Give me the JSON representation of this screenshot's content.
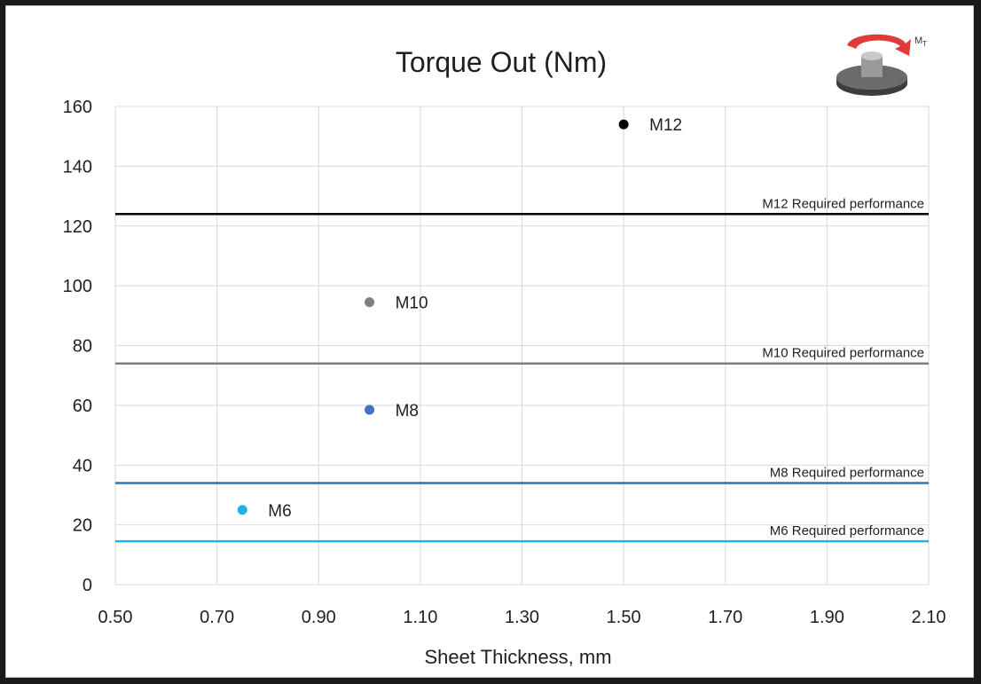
{
  "chart_data": {
    "type": "scatter",
    "title": "Torque Out (Nm)",
    "xlabel": "Sheet Thickness, mm",
    "ylabel": "",
    "xlim": [
      0.5,
      2.1
    ],
    "ylim": [
      0,
      160
    ],
    "x_ticks": [
      "0.50",
      "0.70",
      "0.90",
      "1.10",
      "1.30",
      "1.50",
      "1.70",
      "1.90",
      "2.10"
    ],
    "y_ticks": [
      "0",
      "20",
      "40",
      "60",
      "80",
      "100",
      "120",
      "140",
      "160"
    ],
    "grid": true,
    "series": [
      {
        "name": "M6",
        "x": 0.75,
        "y": 25,
        "color": "#1fb2e6"
      },
      {
        "name": "M8",
        "x": 1.0,
        "y": 58.5,
        "color": "#4472c4"
      },
      {
        "name": "M10",
        "x": 1.0,
        "y": 94.5,
        "color": "#7f7f7f"
      },
      {
        "name": "M12",
        "x": 1.5,
        "y": 154,
        "color": "#000000"
      }
    ],
    "reference_lines": [
      {
        "label": "M12 Required performance",
        "y": 124,
        "color": "#000000"
      },
      {
        "label": "M10 Required performance",
        "y": 74,
        "color": "#7f7f7f"
      },
      {
        "label": "M8 Required performance",
        "y": 34,
        "color": "#2e75b6"
      },
      {
        "label": "M6 Required performance",
        "y": 14.5,
        "color": "#1fb2e6"
      }
    ]
  },
  "logo": {
    "icon": "torque-nut-icon",
    "label_main": "M",
    "label_sub": "T",
    "arrow_color": "#e03a3a"
  }
}
